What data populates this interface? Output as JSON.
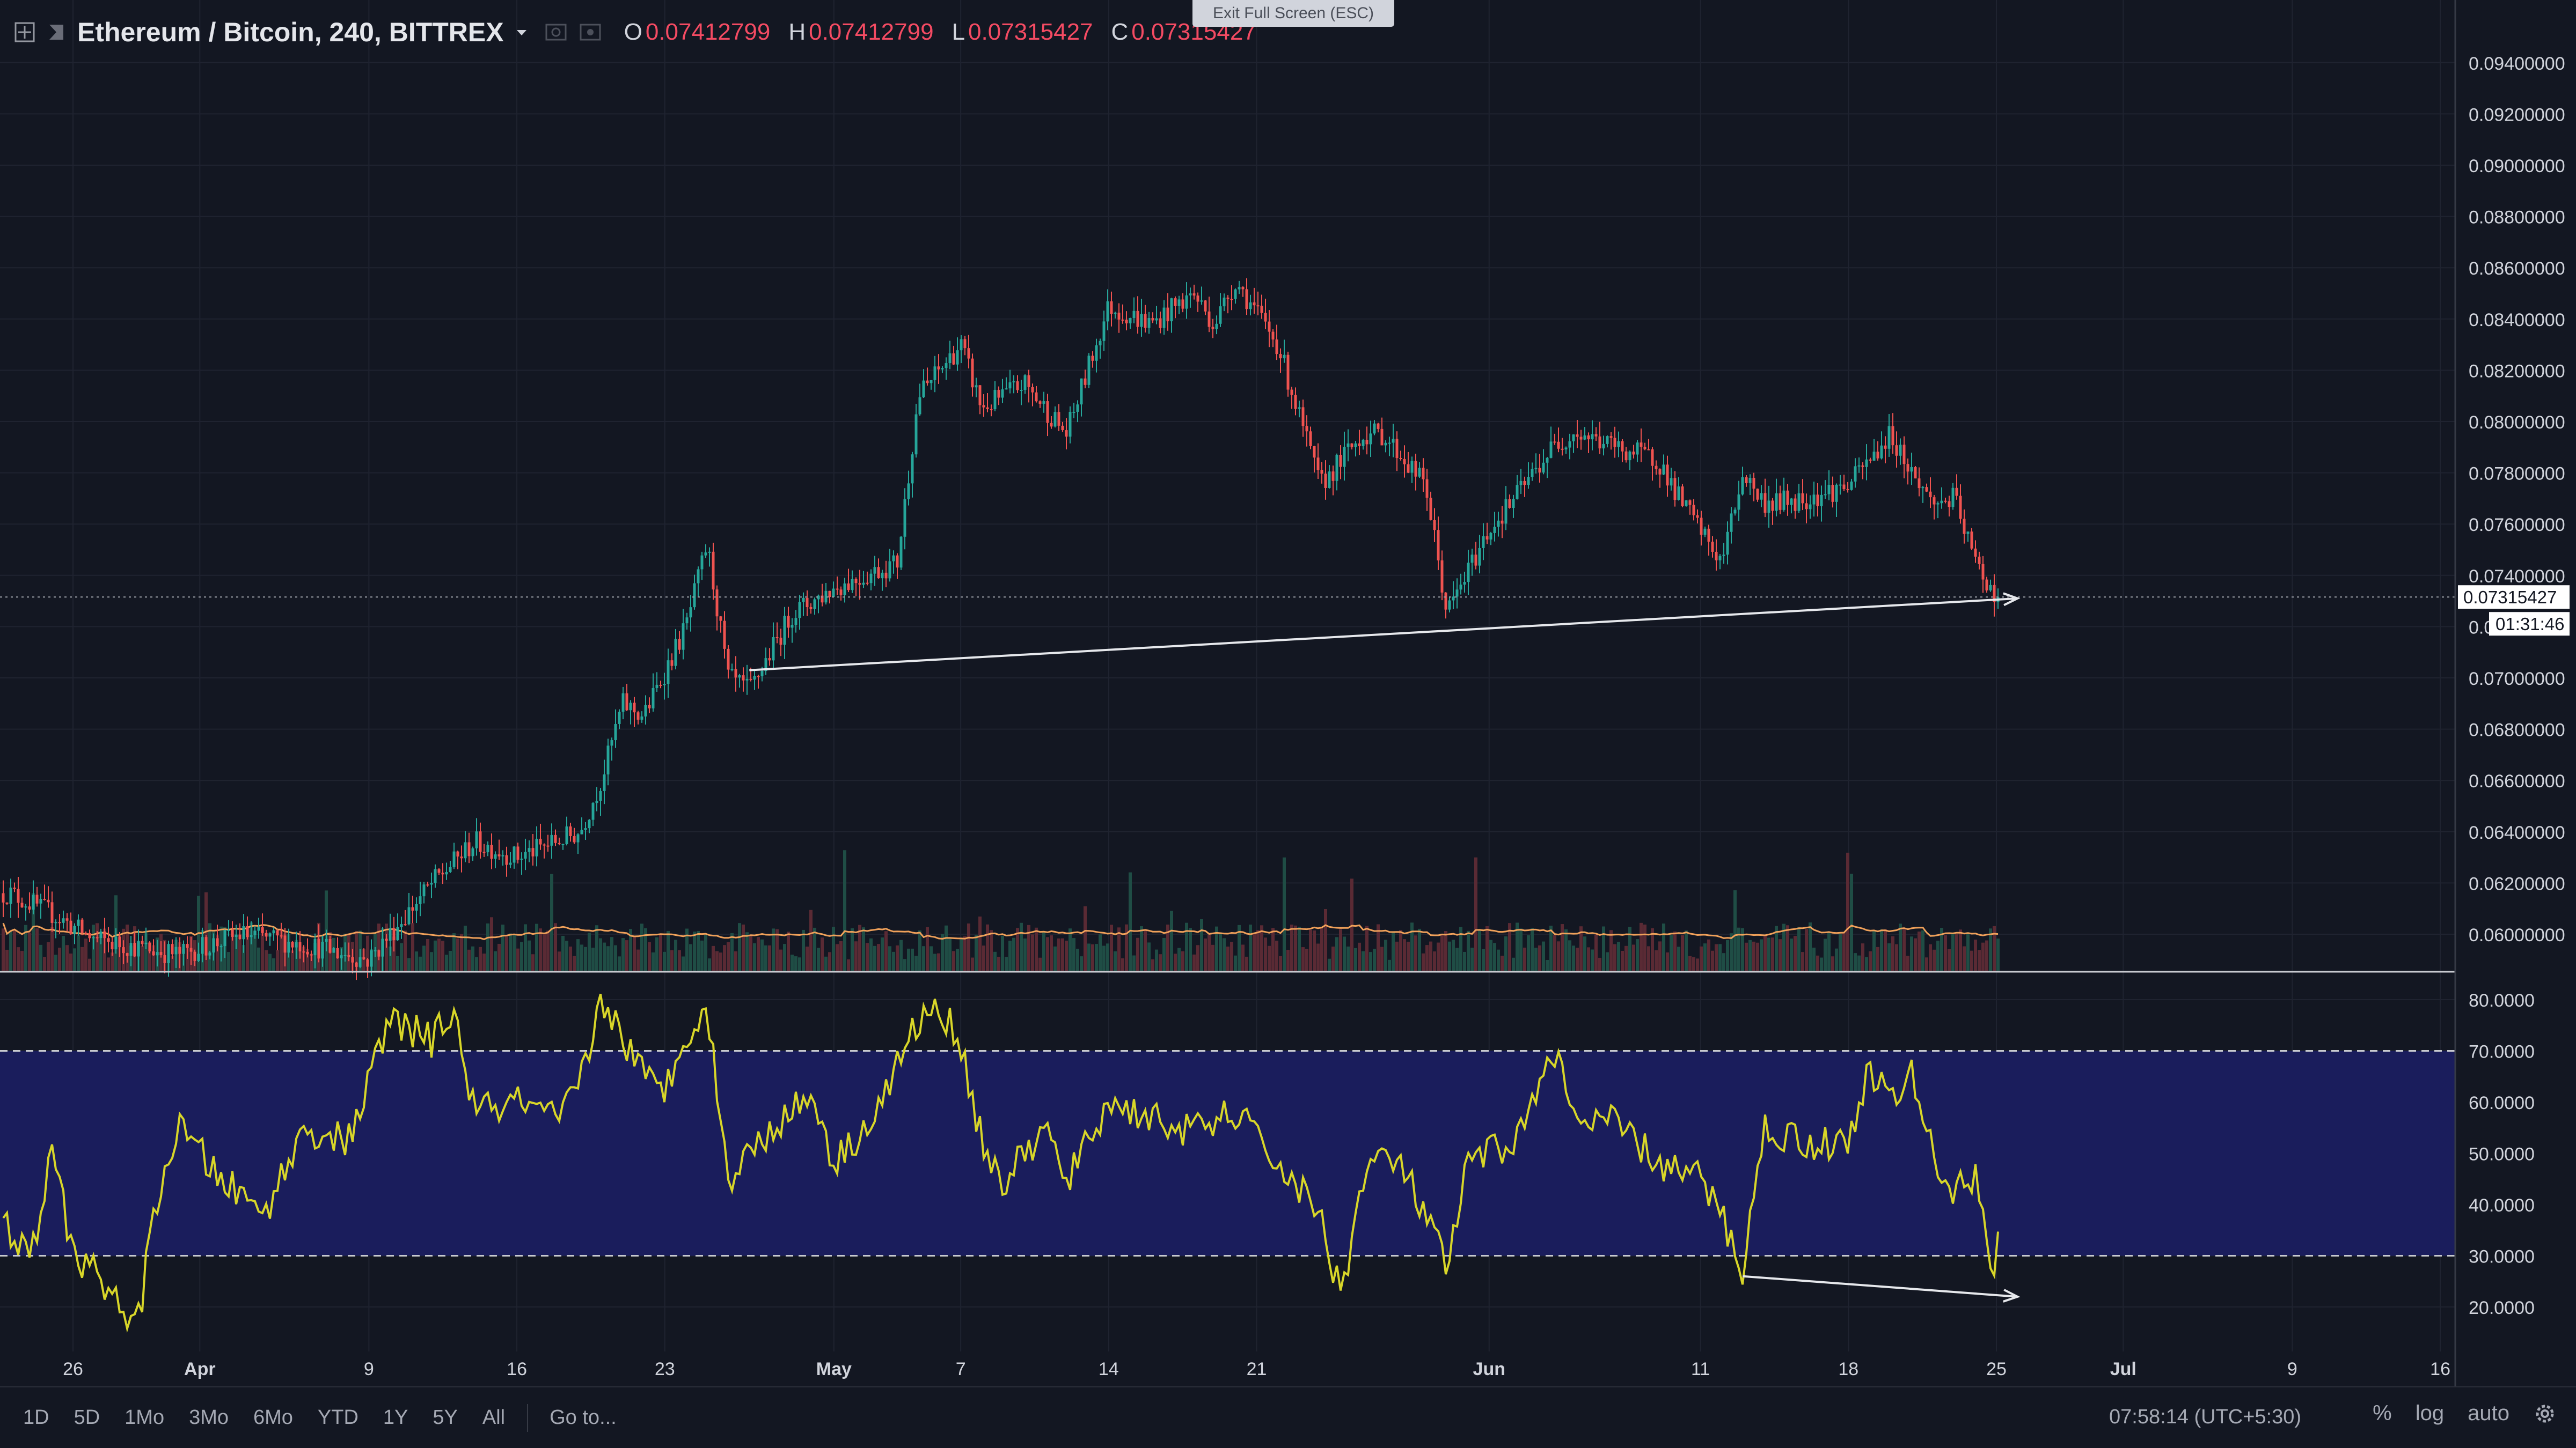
{
  "header": {
    "symbol_title": "Ethereum / Bitcoin, 240, BITTREX",
    "ohlc": [
      {
        "key": "O",
        "value": "0.07412799"
      },
      {
        "key": "H",
        "value": "0.07412799"
      },
      {
        "key": "L",
        "value": "0.07315427"
      },
      {
        "key": "C",
        "value": "0.07315427"
      }
    ],
    "exit_fullscreen": "Exit Full Screen (ESC)"
  },
  "price_axis": {
    "ticks": [
      "0.09400000",
      "0.09200000",
      "0.09000000",
      "0.08800000",
      "0.08600000",
      "0.08400000",
      "0.08200000",
      "0.08000000",
      "0.07800000",
      "0.07600000",
      "0.07400000",
      "0.07200000",
      "0.07000000",
      "0.06800000",
      "0.06600000",
      "0.06400000",
      "0.06200000",
      "0.06000000"
    ],
    "last_price_label": "0.07315427",
    "countdown_label": "01:31:46"
  },
  "rsi_axis": {
    "ticks": [
      "80.0000",
      "70.0000",
      "60.0000",
      "50.0000",
      "40.0000",
      "30.0000",
      "20.0000"
    ]
  },
  "time_axis": {
    "labels": [
      "26",
      "Apr",
      "9",
      "16",
      "23",
      "May",
      "7",
      "14",
      "21",
      "Jun",
      "11",
      "18",
      "25",
      "Jul",
      "9",
      "16"
    ]
  },
  "bottom_bar": {
    "ranges": [
      "1D",
      "5D",
      "1Mo",
      "3Mo",
      "6Mo",
      "YTD",
      "1Y",
      "5Y",
      "All"
    ],
    "goto": "Go to...",
    "clock": "07:58:14 (UTC+5:30)",
    "percent": "%",
    "log": "log",
    "auto": "auto"
  },
  "colors": {
    "background": "#131722",
    "up": "#26a69a",
    "down": "#ef5350",
    "rsi_line": "#d8d629",
    "rsi_band": "#1a1d5c",
    "volume_ma": "#f0a15a"
  },
  "chart_data": [
    {
      "type": "candlestick",
      "title": "Ethereum / Bitcoin, 240, BITTREX",
      "x_labels": [
        "26",
        "Apr",
        "9",
        "16",
        "23",
        "May",
        "7",
        "14",
        "21",
        "Jun",
        "11",
        "18",
        "25",
        "Jul",
        "9",
        "16"
      ],
      "ylim": [
        0.059,
        0.0955
      ],
      "last_price": 0.07315427,
      "close_path": [
        {
          "x": "Mar 23",
          "y": 0.0616
        },
        {
          "x": "Mar 25",
          "y": 0.0608
        },
        {
          "x": "Mar 27",
          "y": 0.0598
        },
        {
          "x": "Mar 31",
          "y": 0.0592
        },
        {
          "x": "Apr 3",
          "y": 0.06
        },
        {
          "x": "Apr 6",
          "y": 0.0596
        },
        {
          "x": "Apr 9",
          "y": 0.059
        },
        {
          "x": "Apr 12",
          "y": 0.062
        },
        {
          "x": "Apr 14",
          "y": 0.0636
        },
        {
          "x": "Apr 16",
          "y": 0.063
        },
        {
          "x": "Apr 19",
          "y": 0.064
        },
        {
          "x": "Apr 20",
          "y": 0.066
        },
        {
          "x": "Apr 21",
          "y": 0.069
        },
        {
          "x": "Apr 22",
          "y": 0.0685
        },
        {
          "x": "Apr 24",
          "y": 0.072
        },
        {
          "x": "Apr 25",
          "y": 0.0752
        },
        {
          "x": "Apr 26",
          "y": 0.07
        },
        {
          "x": "Apr 27",
          "y": 0.0695
        },
        {
          "x": "Apr 29",
          "y": 0.0725
        },
        {
          "x": "May 1",
          "y": 0.0735
        },
        {
          "x": "May 4",
          "y": 0.0745
        },
        {
          "x": "May 5",
          "y": 0.081
        },
        {
          "x": "May 7",
          "y": 0.083
        },
        {
          "x": "May 8",
          "y": 0.0805
        },
        {
          "x": "May 10",
          "y": 0.0815
        },
        {
          "x": "May 12",
          "y": 0.0795
        },
        {
          "x": "May 14",
          "y": 0.0845
        },
        {
          "x": "May 16",
          "y": 0.0838
        },
        {
          "x": "May 18",
          "y": 0.085
        },
        {
          "x": "May 19",
          "y": 0.0838
        },
        {
          "x": "May 20",
          "y": 0.0855
        },
        {
          "x": "May 22",
          "y": 0.083
        },
        {
          "x": "May 24",
          "y": 0.0775
        },
        {
          "x": "May 26",
          "y": 0.0795
        },
        {
          "x": "May 27",
          "y": 0.0795
        },
        {
          "x": "May 29",
          "y": 0.0775
        },
        {
          "x": "May 30",
          "y": 0.0725
        },
        {
          "x": "Jun 1",
          "y": 0.0758
        },
        {
          "x": "Jun 2",
          "y": 0.0768
        },
        {
          "x": "Jun 4",
          "y": 0.079
        },
        {
          "x": "Jun 5",
          "y": 0.0796
        },
        {
          "x": "Jun 7",
          "y": 0.079
        },
        {
          "x": "Jun 9",
          "y": 0.0785
        },
        {
          "x": "Jun 10",
          "y": 0.077
        },
        {
          "x": "Jun 12",
          "y": 0.0745
        },
        {
          "x": "Jun 13",
          "y": 0.078
        },
        {
          "x": "Jun 14",
          "y": 0.0768
        },
        {
          "x": "Jun 16",
          "y": 0.077
        },
        {
          "x": "Jun 18",
          "y": 0.0775
        },
        {
          "x": "Jun 20",
          "y": 0.0795
        },
        {
          "x": "Jun 21",
          "y": 0.078
        },
        {
          "x": "Jun 22",
          "y": 0.0768
        },
        {
          "x": "Jun 23",
          "y": 0.077
        },
        {
          "x": "Jun 24",
          "y": 0.0745
        },
        {
          "x": "Jun 25",
          "y": 0.07315
        }
      ],
      "annotations": [
        {
          "type": "trendline",
          "from": {
            "x": "Apr 27",
            "y": 0.0703
          },
          "to": {
            "x": "Jun 26",
            "y": 0.0731
          },
          "arrow": true
        }
      ],
      "volume_overlay": true
    },
    {
      "type": "line",
      "title": "",
      "ylim": [
        12,
        83
      ],
      "hlines": [
        70,
        30
      ],
      "band": [
        30,
        70
      ],
      "series": [
        {
          "values": [
            {
              "x": "Mar 23",
              "y": 35
            },
            {
              "x": "Mar 24",
              "y": 29
            },
            {
              "x": "Mar 25",
              "y": 50
            },
            {
              "x": "Mar 26",
              "y": 31
            },
            {
              "x": "Mar 28",
              "y": 22
            },
            {
              "x": "Mar 29",
              "y": 15
            },
            {
              "x": "Mar 30",
              "y": 42
            },
            {
              "x": "Mar 31",
              "y": 55
            },
            {
              "x": "Apr 2",
              "y": 45
            },
            {
              "x": "Apr 4",
              "y": 38
            },
            {
              "x": "Apr 6",
              "y": 55
            },
            {
              "x": "Apr 8",
              "y": 52
            },
            {
              "x": "Apr 10",
              "y": 76
            },
            {
              "x": "Apr 12",
              "y": 72
            },
            {
              "x": "Apr 13",
              "y": 78
            },
            {
              "x": "Apr 14",
              "y": 58
            },
            {
              "x": "Apr 16",
              "y": 60
            },
            {
              "x": "Apr 18",
              "y": 56
            },
            {
              "x": "Apr 19",
              "y": 64
            },
            {
              "x": "Apr 20",
              "y": 80
            },
            {
              "x": "Apr 21",
              "y": 73
            },
            {
              "x": "Apr 22",
              "y": 65
            },
            {
              "x": "Apr 23",
              "y": 62
            },
            {
              "x": "Apr 24",
              "y": 74
            },
            {
              "x": "Apr 25",
              "y": 78
            },
            {
              "x": "Apr 26",
              "y": 45
            },
            {
              "x": "Apr 28",
              "y": 55
            },
            {
              "x": "Apr 29",
              "y": 58
            },
            {
              "x": "Apr 30",
              "y": 62
            },
            {
              "x": "May 1",
              "y": 48
            },
            {
              "x": "May 3",
              "y": 58
            },
            {
              "x": "May 5",
              "y": 76
            },
            {
              "x": "May 6",
              "y": 78
            },
            {
              "x": "May 7",
              "y": 72
            },
            {
              "x": "May 8",
              "y": 52
            },
            {
              "x": "May 9",
              "y": 44
            },
            {
              "x": "May 11",
              "y": 55
            },
            {
              "x": "May 12",
              "y": 44
            },
            {
              "x": "May 14",
              "y": 60
            },
            {
              "x": "May 16",
              "y": 57
            },
            {
              "x": "May 18",
              "y": 54
            },
            {
              "x": "May 20",
              "y": 58
            },
            {
              "x": "May 22",
              "y": 48
            },
            {
              "x": "May 24",
              "y": 38
            },
            {
              "x": "May 25",
              "y": 22
            },
            {
              "x": "May 26",
              "y": 45
            },
            {
              "x": "May 27",
              "y": 50
            },
            {
              "x": "May 28",
              "y": 46
            },
            {
              "x": "May 29",
              "y": 38
            },
            {
              "x": "May 30",
              "y": 27
            },
            {
              "x": "May 31",
              "y": 48
            },
            {
              "x": "Jun 2",
              "y": 52
            },
            {
              "x": "Jun 3",
              "y": 58
            },
            {
              "x": "Jun 4",
              "y": 72
            },
            {
              "x": "Jun 5",
              "y": 56
            },
            {
              "x": "Jun 7",
              "y": 56
            },
            {
              "x": "Jun 9",
              "y": 48
            },
            {
              "x": "Jun 11",
              "y": 45
            },
            {
              "x": "Jun 12",
              "y": 38
            },
            {
              "x": "Jun 13",
              "y": 27
            },
            {
              "x": "Jun 14",
              "y": 55
            },
            {
              "x": "Jun 16",
              "y": 52
            },
            {
              "x": "Jun 18",
              "y": 52
            },
            {
              "x": "Jun 19",
              "y": 67
            },
            {
              "x": "Jun 20",
              "y": 60
            },
            {
              "x": "Jun 21",
              "y": 65
            },
            {
              "x": "Jun 22",
              "y": 50
            },
            {
              "x": "Jun 23",
              "y": 42
            },
            {
              "x": "Jun 24",
              "y": 46
            },
            {
              "x": "Jun 25",
              "y": 25
            },
            {
              "x": "Jun 25",
              "y": 34
            }
          ]
        }
      ],
      "annotations": [
        {
          "type": "trendline",
          "from": {
            "x": "Jun 13",
            "y": 26
          },
          "to": {
            "x": "Jun 26",
            "y": 22
          },
          "arrow": true
        }
      ]
    }
  ]
}
